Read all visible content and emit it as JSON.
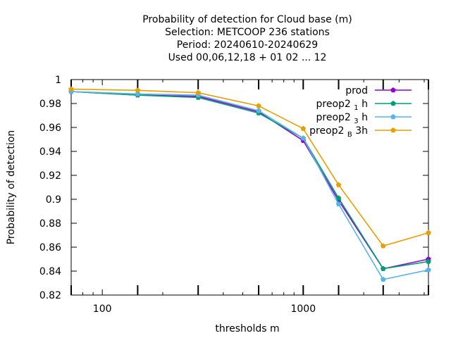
{
  "chart_data": {
    "type": "line",
    "title_lines": [
      "Probability of detection  for Cloud base (m)",
      "Selection: METCOOP    236 stations",
      "Period: 20240610-20240629",
      "Used  00,06,12,18 + 01 02 ... 12"
    ],
    "xlabel": "thresholds m",
    "ylabel": "Probability of detection",
    "x_scale": "log",
    "xlim": [
      70,
      4200
    ],
    "ylim": [
      0.82,
      1.0
    ],
    "x_major_ticks": [
      100,
      1000
    ],
    "x_tick_labels": [
      "100",
      "1000"
    ],
    "y_ticks": [
      0.82,
      0.84,
      0.86,
      0.88,
      0.9,
      0.92,
      0.94,
      0.96,
      0.98,
      1.0
    ],
    "y_tick_labels": [
      "0.82",
      "0.84",
      "0.86",
      "0.88",
      "0.9",
      "0.92",
      "0.94",
      "0.96",
      "0.98",
      "1"
    ],
    "grid": false,
    "legend_position": "top-right",
    "x": [
      70,
      150,
      300,
      600,
      1000,
      1500,
      2500,
      4200
    ],
    "series": [
      {
        "name": "prod",
        "label_main": "prod",
        "label_sub": "",
        "label_tail": "",
        "color": "#9400d3",
        "values": [
          0.99,
          0.987,
          0.986,
          0.973,
          0.949,
          0.899,
          0.842,
          0.85
        ]
      },
      {
        "name": "preop2 1 h",
        "label_main": "preop2 ",
        "label_sub": "1",
        "label_tail": " h",
        "color": "#009e73",
        "values": [
          0.99,
          0.987,
          0.985,
          0.972,
          0.951,
          0.901,
          0.842,
          0.848
        ]
      },
      {
        "name": "preop2 3 h",
        "label_main": "preop2 ",
        "label_sub": "3",
        "label_tail": " h",
        "color": "#56b4e9",
        "values": [
          0.99,
          0.988,
          0.987,
          0.974,
          0.951,
          0.896,
          0.833,
          0.841
        ]
      },
      {
        "name": "preop2 B 3h",
        "label_main": "preop2 ",
        "label_sub": "B",
        "label_tail": " 3h",
        "color": "#e69f00",
        "values": [
          0.992,
          0.991,
          0.989,
          0.978,
          0.959,
          0.912,
          0.861,
          0.872
        ]
      }
    ]
  }
}
